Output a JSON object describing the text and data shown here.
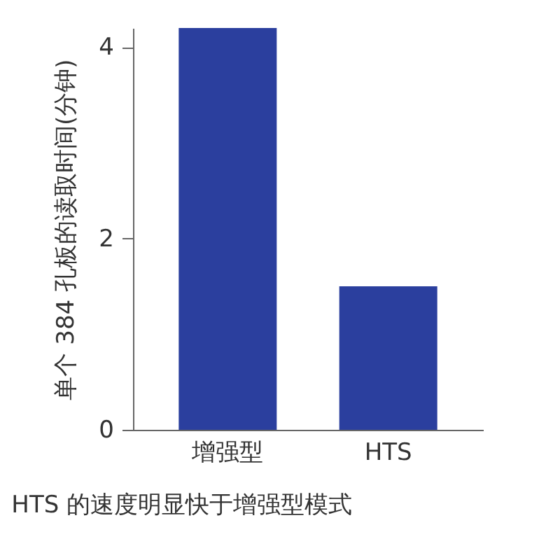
{
  "chart_data": {
    "type": "bar",
    "ylabel": "单个 384 孔板的读取时间(分钟)",
    "categories": [
      "增强型",
      "HTS"
    ],
    "values": [
      4.2,
      1.5
    ],
    "color": "#2b3f9e",
    "ylim": [
      0,
      4.2
    ],
    "yticks": [
      0,
      2,
      4
    ],
    "grid": false,
    "annotations": [
      "HTS 的速度明显快于增强型模式"
    ]
  }
}
